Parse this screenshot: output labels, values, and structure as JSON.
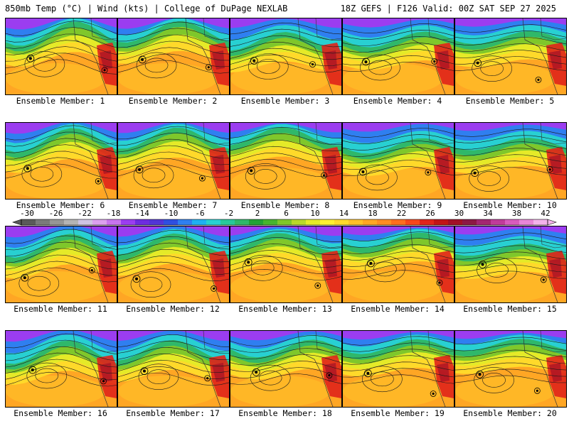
{
  "header": {
    "title": "850mb Temp (°C) | Wind (kts) | College of DuPage NEXLAB",
    "run_info": "18Z GEFS | F126 Valid: 00Z SAT SEP 27 2025"
  },
  "members": [
    "Ensemble Member: 1",
    "Ensemble Member: 2",
    "Ensemble Member: 3",
    "Ensemble Member: 4",
    "Ensemble Member: 5",
    "Ensemble Member: 6",
    "Ensemble Member: 7",
    "Ensemble Member: 8",
    "Ensemble Member: 9",
    "Ensemble Member: 10",
    "Ensemble Member: 11",
    "Ensemble Member: 12",
    "Ensemble Member: 13",
    "Ensemble Member: 14",
    "Ensemble Member: 15",
    "Ensemble Member: 16",
    "Ensemble Member: 17",
    "Ensemble Member: 18",
    "Ensemble Member: 19",
    "Ensemble Member: 20"
  ],
  "colorbar": {
    "ticks": [
      "-30",
      "-26",
      "-22",
      "-18",
      "-14",
      "-10",
      "-6",
      "-2",
      "2",
      "6",
      "10",
      "14",
      "18",
      "22",
      "26",
      "30",
      "34",
      "38",
      "42"
    ],
    "colors": [
      "#5a5a5a",
      "#7a7a7a",
      "#969696",
      "#b4b4b4",
      "#cfc3e3",
      "#dca0ee",
      "#c874ee",
      "#9b3df0",
      "#6e2ce0",
      "#5235d6",
      "#2f4fe0",
      "#2f7ff0",
      "#1fb1f2",
      "#28d0d2",
      "#28c89a",
      "#2fb86a",
      "#23a337",
      "#47b52f",
      "#7fc72b",
      "#b8d82a",
      "#e5ea28",
      "#fff030",
      "#ffd92a",
      "#ffbf28",
      "#ffa624",
      "#ff8c22",
      "#ff6e1f",
      "#f7471c",
      "#e0231a",
      "#c21416",
      "#a21026",
      "#8c1845",
      "#a42672",
      "#c03b9a",
      "#d85cbd",
      "#e986d7",
      "#f3b2ea"
    ]
  }
}
